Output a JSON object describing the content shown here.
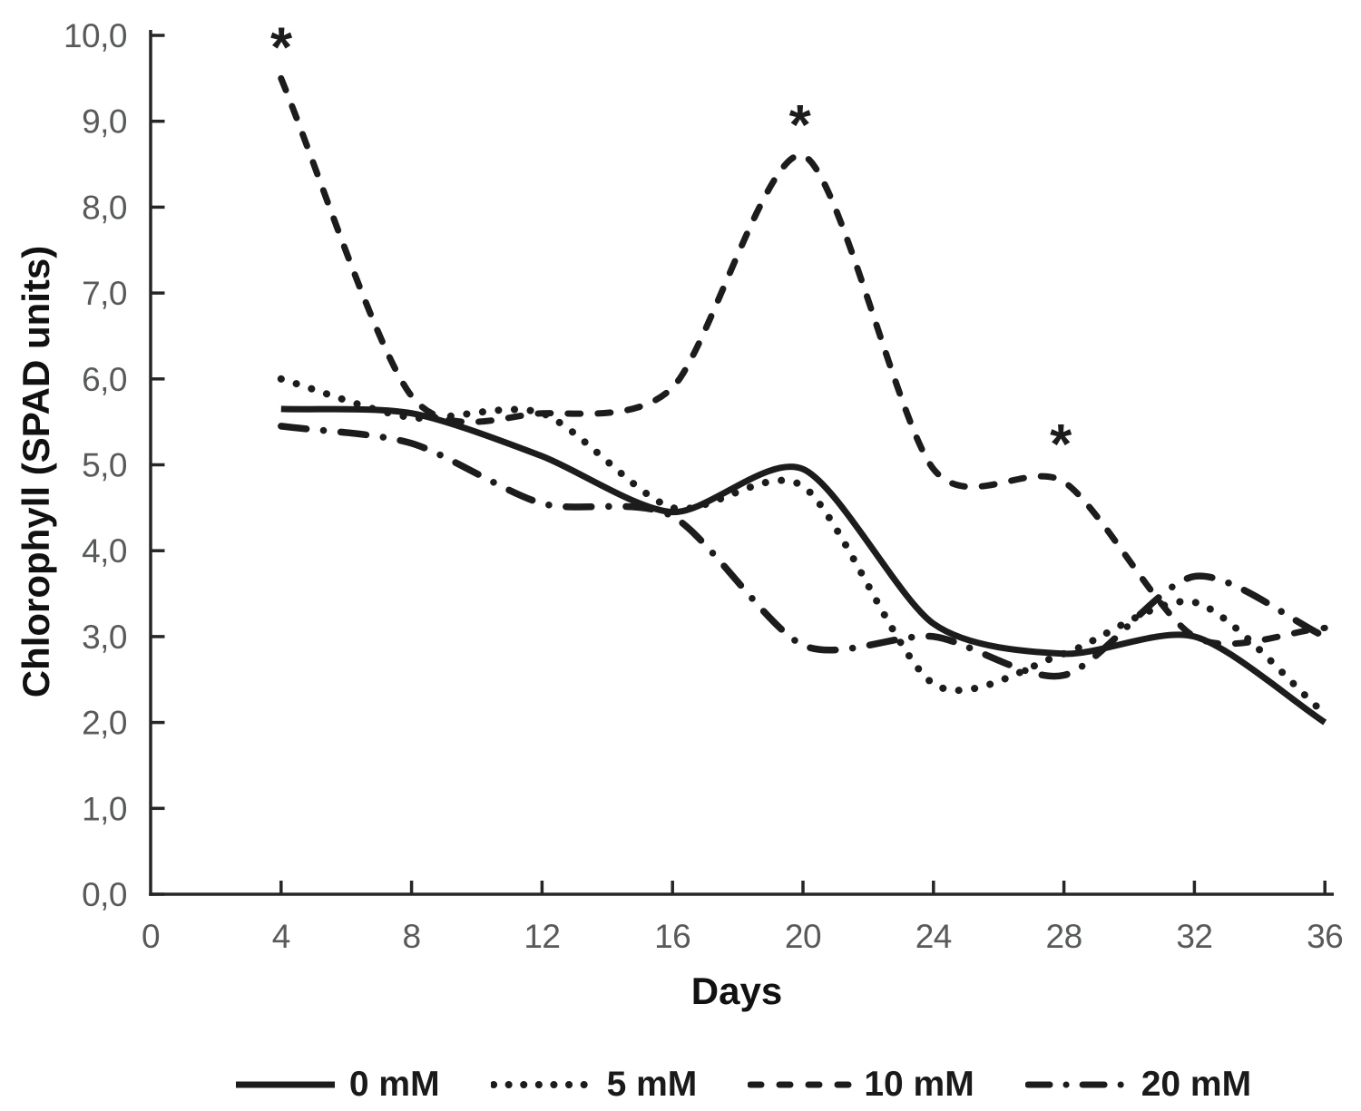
{
  "chart_data": {
    "type": "line",
    "xlabel": "Days",
    "ylabel": "Chlorophyll (SPAD units)",
    "x": [
      4,
      8,
      12,
      16,
      20,
      24,
      28,
      32,
      36
    ],
    "series": [
      {
        "name": "0 mM",
        "style": "solid",
        "values": [
          5.65,
          5.6,
          5.1,
          4.45,
          4.95,
          3.15,
          2.8,
          3.0,
          2.0
        ]
      },
      {
        "name": "5 mM",
        "style": "dotted",
        "values": [
          6.0,
          5.55,
          5.6,
          4.5,
          4.75,
          2.45,
          2.8,
          3.4,
          2.1
        ]
      },
      {
        "name": "10 mM",
        "style": "dashed",
        "values": [
          9.5,
          5.8,
          5.6,
          5.9,
          8.6,
          4.95,
          4.8,
          3.0,
          3.1
        ]
      },
      {
        "name": "20 mM",
        "style": "dashdot",
        "values": [
          5.45,
          5.25,
          4.55,
          4.4,
          2.9,
          3.0,
          2.55,
          3.7,
          3.0
        ]
      }
    ],
    "xlim": [
      0,
      36
    ],
    "ylim": [
      0.0,
      10.0
    ],
    "xticks": [
      0,
      4,
      8,
      12,
      16,
      20,
      24,
      28,
      32,
      36
    ],
    "xtick_labels": [
      "0",
      "4",
      "8",
      "12",
      "16",
      "20",
      "24",
      "28",
      "32",
      "36"
    ],
    "ytick_labels": [
      "0,0",
      "1,0",
      "2,0",
      "3,0",
      "4,0",
      "5,0",
      "6,0",
      "7,0",
      "8,0",
      "9,0",
      "10,0"
    ],
    "grid": false,
    "legend_position": "bottom",
    "annotations": [
      {
        "symbol": "*",
        "day": 4.0,
        "value": 9.95
      },
      {
        "symbol": "*",
        "day": 19.9,
        "value": 9.05
      },
      {
        "symbol": "*",
        "day": 27.9,
        "value": 5.33
      }
    ],
    "colors": {
      "line": "#1c1c1c",
      "axis": "#262626",
      "tick_label": "#58595a",
      "title": "#111111"
    }
  }
}
